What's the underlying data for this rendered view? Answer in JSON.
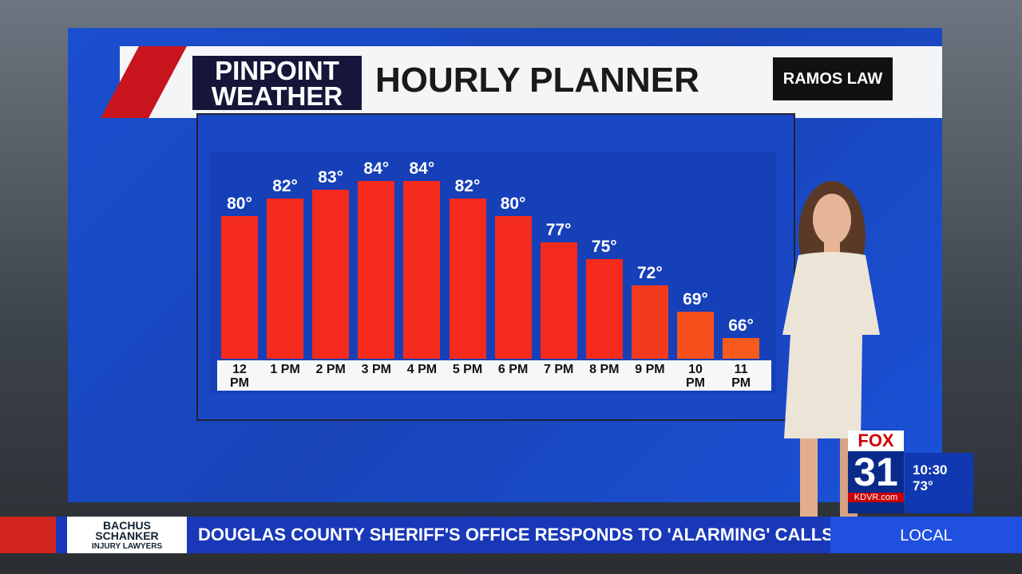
{
  "chart_data": {
    "type": "bar",
    "title": "HOURLY PLANNER",
    "categories": [
      "12 PM",
      "1 PM",
      "2 PM",
      "3 PM",
      "4 PM",
      "5 PM",
      "6 PM",
      "7 PM",
      "8 PM",
      "9 PM",
      "10 PM",
      "11 PM"
    ],
    "values": [
      80,
      82,
      83,
      84,
      84,
      82,
      80,
      77,
      75,
      72,
      69,
      66
    ],
    "value_labels": [
      "80°",
      "82°",
      "83°",
      "84°",
      "84°",
      "82°",
      "80°",
      "77°",
      "75°",
      "72°",
      "69°",
      "66°"
    ],
    "colors": [
      "#f42a1c",
      "#f42a1c",
      "#f42a1c",
      "#f42a1c",
      "#f42a1c",
      "#f42a1c",
      "#f42a1c",
      "#f42a1c",
      "#f42a1c",
      "#f43a1c",
      "#f7501c",
      "#f75a1c"
    ]
  },
  "header": {
    "logo_line1": "PINPOINT",
    "logo_line2": "WEATHER",
    "sponsor": "RAMOS LAW"
  },
  "bug": {
    "network": "FOX",
    "channel": "31",
    "site": "KDVR.com",
    "time": "10:30",
    "temperature": "73°"
  },
  "ticker": {
    "sponsor_line1": "BACHUS",
    "sponsor_line2": "SCHANKER",
    "sponsor_line3": "INJURY LAWYERS",
    "headline": "DOUGLAS COUNTY SHERIFF'S OFFICE RESPONDS TO 'ALARMING' CALLS OF KIDS",
    "section": "LOCAL"
  }
}
